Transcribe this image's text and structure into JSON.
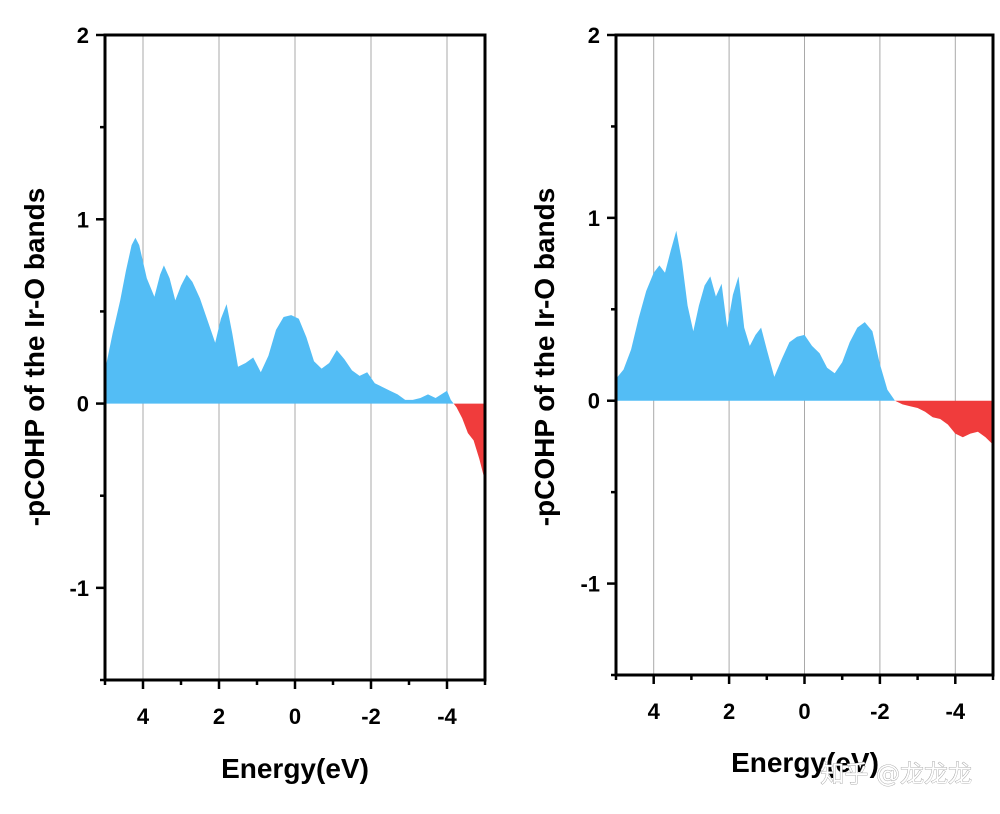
{
  "chart_data": [
    {
      "type": "area",
      "name": "left-panel",
      "xlabel": "Energy(eV)",
      "ylabel": "-pCOHP of the Ir-O bands",
      "xlim": [
        5,
        -5
      ],
      "ylim": [
        -1.5,
        2
      ],
      "xticks": [
        4,
        2,
        0,
        -2,
        -4
      ],
      "xtick_labels": [
        "4",
        "2",
        "0",
        "-2",
        "-4"
      ],
      "yticks": [
        2,
        1,
        0,
        -1
      ],
      "ytick_labels": [
        "2",
        "1",
        "0",
        "-1"
      ],
      "grid": "vertical",
      "colors": {
        "positive": "#53bdf5",
        "negative": "#f03c3c"
      },
      "series": [
        {
          "name": "pCOHP",
          "x": [
            5.0,
            4.8,
            4.6,
            4.45,
            4.3,
            4.2,
            4.1,
            3.9,
            3.7,
            3.55,
            3.45,
            3.3,
            3.15,
            3.0,
            2.85,
            2.7,
            2.5,
            2.3,
            2.1,
            1.95,
            1.8,
            1.65,
            1.5,
            1.3,
            1.1,
            0.9,
            0.7,
            0.5,
            0.3,
            0.1,
            -0.1,
            -0.3,
            -0.5,
            -0.7,
            -0.9,
            -1.1,
            -1.3,
            -1.5,
            -1.7,
            -1.9,
            -2.1,
            -2.3,
            -2.5,
            -2.7,
            -2.9,
            -3.1,
            -3.3,
            -3.5,
            -3.7,
            -3.85,
            -4.0,
            -4.1,
            -4.25,
            -4.4,
            -4.55,
            -4.7,
            -4.85,
            -5.0
          ],
          "y": [
            0.18,
            0.38,
            0.56,
            0.72,
            0.86,
            0.9,
            0.86,
            0.68,
            0.58,
            0.7,
            0.75,
            0.68,
            0.56,
            0.64,
            0.7,
            0.66,
            0.57,
            0.45,
            0.33,
            0.46,
            0.54,
            0.38,
            0.2,
            0.22,
            0.25,
            0.17,
            0.26,
            0.4,
            0.47,
            0.48,
            0.46,
            0.36,
            0.23,
            0.19,
            0.22,
            0.29,
            0.24,
            0.18,
            0.15,
            0.17,
            0.11,
            0.09,
            0.07,
            0.05,
            0.02,
            0.02,
            0.03,
            0.05,
            0.03,
            0.05,
            0.07,
            0.02,
            -0.02,
            -0.08,
            -0.16,
            -0.2,
            -0.3,
            -0.42
          ]
        }
      ]
    },
    {
      "type": "area",
      "name": "right-panel",
      "xlabel": "Energy(eV)",
      "ylabel": "-pCOHP of the Ir-O bands",
      "xlim": [
        5,
        -5
      ],
      "ylim": [
        -1.5,
        2
      ],
      "xticks": [
        4,
        2,
        0,
        -2,
        -4
      ],
      "xtick_labels": [
        "4",
        "2",
        "0",
        "-2",
        "-4"
      ],
      "yticks": [
        2,
        1,
        0,
        -1
      ],
      "ytick_labels": [
        "2",
        "1",
        "0",
        "-1"
      ],
      "grid": "vertical",
      "colors": {
        "positive": "#53bdf5",
        "negative": "#f03c3c"
      },
      "series": [
        {
          "name": "pCOHP",
          "x": [
            5.0,
            4.8,
            4.6,
            4.4,
            4.2,
            4.0,
            3.85,
            3.7,
            3.55,
            3.4,
            3.25,
            3.1,
            2.95,
            2.8,
            2.65,
            2.5,
            2.35,
            2.2,
            2.05,
            1.9,
            1.75,
            1.6,
            1.45,
            1.3,
            1.15,
            1.0,
            0.8,
            0.6,
            0.4,
            0.2,
            0.0,
            -0.2,
            -0.4,
            -0.6,
            -0.8,
            -1.0,
            -1.2,
            -1.4,
            -1.6,
            -1.8,
            -2.0,
            -2.2,
            -2.4,
            -2.6,
            -2.8,
            -3.0,
            -3.2,
            -3.4,
            -3.6,
            -3.8,
            -4.0,
            -4.2,
            -4.4,
            -4.6,
            -4.8,
            -5.0
          ],
          "y": [
            0.12,
            0.17,
            0.28,
            0.45,
            0.6,
            0.7,
            0.74,
            0.7,
            0.82,
            0.93,
            0.76,
            0.52,
            0.38,
            0.52,
            0.63,
            0.68,
            0.57,
            0.64,
            0.4,
            0.58,
            0.68,
            0.4,
            0.3,
            0.36,
            0.4,
            0.28,
            0.13,
            0.23,
            0.32,
            0.35,
            0.36,
            0.3,
            0.26,
            0.18,
            0.15,
            0.21,
            0.32,
            0.4,
            0.43,
            0.38,
            0.2,
            0.06,
            0.0,
            -0.02,
            -0.03,
            -0.04,
            -0.06,
            -0.09,
            -0.1,
            -0.13,
            -0.18,
            -0.2,
            -0.18,
            -0.17,
            -0.2,
            -0.24
          ]
        }
      ]
    }
  ],
  "watermark": {
    "text": "知乎 @龙龙龙"
  }
}
